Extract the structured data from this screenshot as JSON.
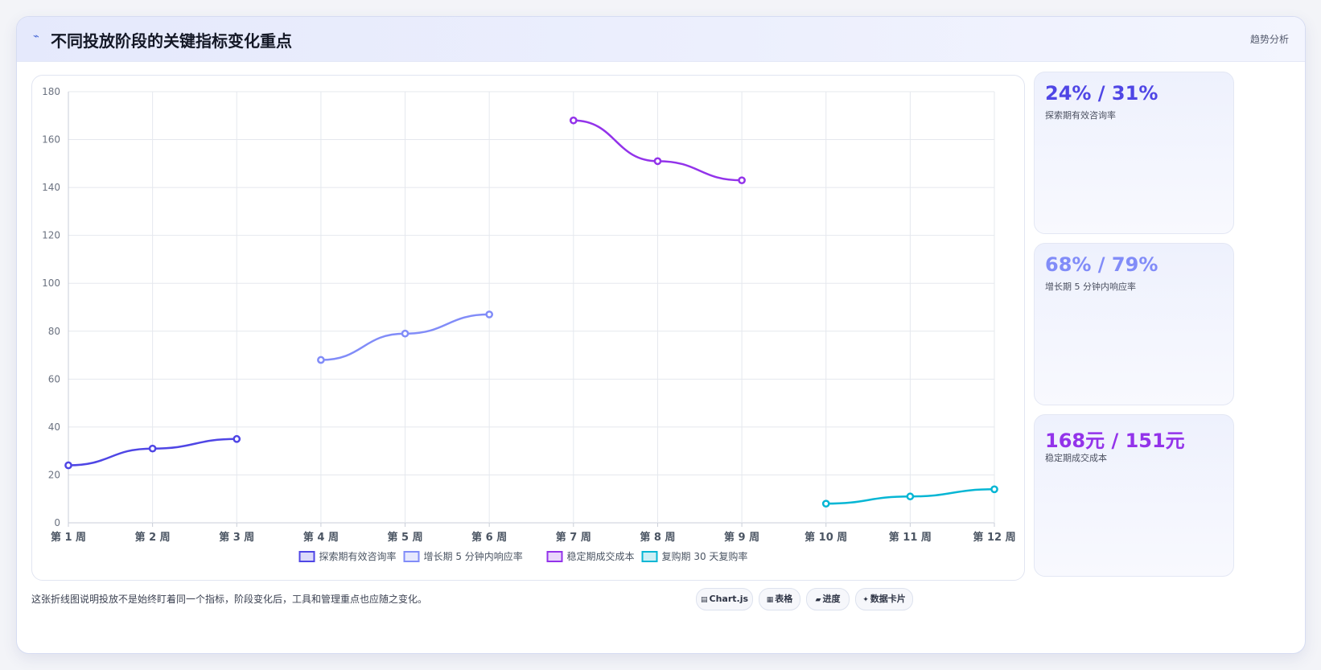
{
  "header": {
    "icon": "trend-line-icon",
    "title": "不同投放阶段的关键指标变化重点",
    "tag": "趋势分析"
  },
  "chart_data": {
    "type": "line",
    "categories": [
      "第 1 周",
      "第 2 周",
      "第 3 周",
      "第 4 周",
      "第 5 周",
      "第 6 周",
      "第 7 周",
      "第 8 周",
      "第 9 周",
      "第 10 周",
      "第 11 周",
      "第 12 周"
    ],
    "ylim": [
      0,
      180
    ],
    "yticks": [
      0,
      20,
      40,
      60,
      80,
      100,
      120,
      140,
      160,
      180
    ],
    "grid": true,
    "legend_position": "bottom",
    "series": [
      {
        "name": "探索期有效咨询率",
        "color": "#4f46e5",
        "values": [
          24,
          31,
          35,
          null,
          null,
          null,
          null,
          null,
          null,
          null,
          null,
          null
        ]
      },
      {
        "name": "增长期 5 分钟内响应率",
        "color": "#818cf8",
        "values": [
          null,
          null,
          null,
          68,
          79,
          87,
          null,
          null,
          null,
          null,
          null,
          null
        ]
      },
      {
        "name": "稳定期成交成本",
        "color": "#9333ea",
        "values": [
          null,
          null,
          null,
          null,
          null,
          null,
          168,
          151,
          143,
          null,
          null,
          null
        ]
      },
      {
        "name": "复购期 30 天复购率",
        "color": "#06b6d4",
        "values": [
          null,
          null,
          null,
          null,
          null,
          null,
          null,
          null,
          null,
          8,
          11,
          14
        ]
      }
    ]
  },
  "stats": [
    {
      "value": "24% / 31%",
      "label": "探索期有效咨询率",
      "color": "#4f46e5"
    },
    {
      "value": "68% / 79%",
      "label": "增长期 5 分钟内响应率",
      "color": "#818cf8"
    },
    {
      "value": "168元 / 151元",
      "label": "稳定期成交成本",
      "color": "#9333ea"
    }
  ],
  "caption": "这张折线图说明投放不是始终盯着同一个指标，阶段变化后，工具和管理重点也应随之变化。",
  "chips": [
    {
      "icon": "chart-icon",
      "glyph": "▤",
      "label": "Chart.js"
    },
    {
      "icon": "table-icon",
      "glyph": "▦",
      "label": "表格"
    },
    {
      "icon": "progress-icon",
      "glyph": "▰",
      "label": "进度"
    },
    {
      "icon": "card-icon",
      "glyph": "✦",
      "label": "数据卡片"
    }
  ]
}
